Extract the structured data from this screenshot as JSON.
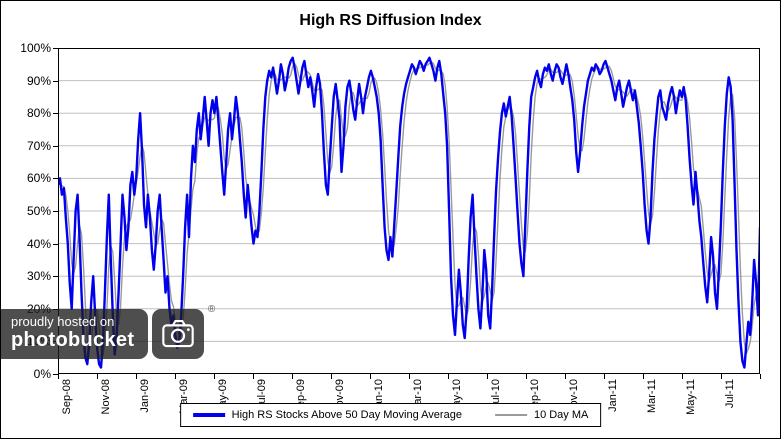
{
  "watermark": {
    "line1": "proudly hosted on",
    "line2": "photobucket",
    "registered": "®"
  },
  "colors": {
    "gridline": "#C0C0C0",
    "axis": "#000000",
    "background": "#FFFFFF"
  },
  "chart_data": {
    "type": "line",
    "title": "High RS Diffusion Index",
    "xlabel": "",
    "ylabel": "",
    "ylim": [
      0,
      100
    ],
    "y_tick_step": 10,
    "grid": true,
    "legend_position": "bottom",
    "y_tick_labels": [
      "100%",
      "90%",
      "80%",
      "70%",
      "60%",
      "50%",
      "40%",
      "30%",
      "20%",
      "10%",
      "0%"
    ],
    "x_tick_labels": [
      "Sep-08",
      "Nov-08",
      "Jan-09",
      "Mar-09",
      "May-09",
      "Jul-09",
      "Sep-09",
      "Nov-09",
      "Jan-10",
      "Mar-10",
      "May-10",
      "Jul-10",
      "Sep-10",
      "Nov-10",
      "Jan-11",
      "Mar-11",
      "May-11",
      "Jul-11"
    ],
    "months_total": 36,
    "points_per_month": 10,
    "x_start": "Sep-08",
    "x_end": "Aug-11",
    "series": [
      {
        "name": "High RS Stocks Above 50 Day Moving Average",
        "color": "#0000EE",
        "line_width": 2.4,
        "values": [
          58,
          60,
          55,
          57,
          48,
          40,
          28,
          20,
          35,
          50,
          55,
          42,
          25,
          12,
          5,
          3,
          10,
          22,
          30,
          18,
          8,
          3,
          2,
          10,
          25,
          42,
          55,
          35,
          18,
          6,
          12,
          25,
          40,
          55,
          48,
          38,
          45,
          58,
          62,
          55,
          60,
          72,
          80,
          68,
          52,
          45,
          55,
          48,
          38,
          32,
          40,
          50,
          55,
          45,
          35,
          25,
          30,
          20,
          15,
          18,
          12,
          8,
          10,
          18,
          30,
          45,
          55,
          42,
          60,
          70,
          65,
          75,
          80,
          72,
          78,
          85,
          78,
          70,
          80,
          84,
          80,
          85,
          78,
          70,
          62,
          55,
          65,
          75,
          80,
          72,
          78,
          85,
          80,
          72,
          65,
          55,
          48,
          58,
          52,
          45,
          40,
          44,
          42,
          50,
          62,
          75,
          85,
          90,
          93,
          91,
          94,
          90,
          86,
          90,
          95,
          92,
          87,
          90,
          94,
          96,
          97,
          94,
          90,
          86,
          90,
          94,
          96,
          92,
          88,
          91,
          87,
          82,
          88,
          92,
          89,
          80,
          68,
          58,
          55,
          66,
          76,
          85,
          89,
          84,
          78,
          62,
          70,
          82,
          88,
          90,
          86,
          81,
          78,
          84,
          89,
          85,
          80,
          85,
          88,
          91,
          93,
          91,
          88,
          85,
          80,
          72,
          58,
          45,
          38,
          35,
          42,
          36,
          46,
          56,
          66,
          76,
          82,
          86,
          89,
          91,
          93,
          95,
          94,
          92,
          94,
          96,
          95,
          93,
          95,
          96,
          97,
          95,
          93,
          90,
          94,
          96,
          92,
          86,
          80,
          70,
          50,
          30,
          18,
          12,
          22,
          32,
          25,
          15,
          11,
          20,
          35,
          48,
          55,
          42,
          30,
          20,
          14,
          24,
          38,
          32,
          18,
          14,
          26,
          42,
          56,
          66,
          74,
          80,
          83,
          79,
          82,
          85,
          79,
          70,
          60,
          50,
          40,
          34,
          30,
          46,
          62,
          76,
          85,
          88,
          91,
          93,
          90,
          88,
          92,
          94,
          93,
          95,
          92,
          90,
          93,
          95,
          94,
          91,
          89,
          92,
          95,
          92,
          88,
          84,
          78,
          68,
          62,
          68,
          76,
          82,
          86,
          90,
          92,
          94,
          93,
          95,
          94,
          92,
          93,
          95,
          96,
          94,
          92,
          90,
          87,
          84,
          88,
          90,
          86,
          82,
          85,
          88,
          90,
          87,
          84,
          87,
          82,
          77,
          70,
          62,
          52,
          44,
          40,
          48,
          62,
          72,
          79,
          85,
          87,
          82,
          80,
          78,
          83,
          86,
          88,
          85,
          80,
          84,
          87,
          85,
          88,
          84,
          76,
          66,
          58,
          52,
          62,
          55,
          47,
          42,
          34,
          27,
          22,
          31,
          42,
          36,
          25,
          20,
          32,
          46,
          62,
          76,
          86,
          91,
          88,
          78,
          58,
          38,
          22,
          10,
          4,
          2,
          9,
          16,
          12,
          22,
          35,
          28,
          18,
          45
        ]
      },
      {
        "name": "10 Day MA",
        "color": "#9A9A9A",
        "line_width": 1.4,
        "derived": "moving_average_of_first_series",
        "window_points": 4
      }
    ]
  }
}
